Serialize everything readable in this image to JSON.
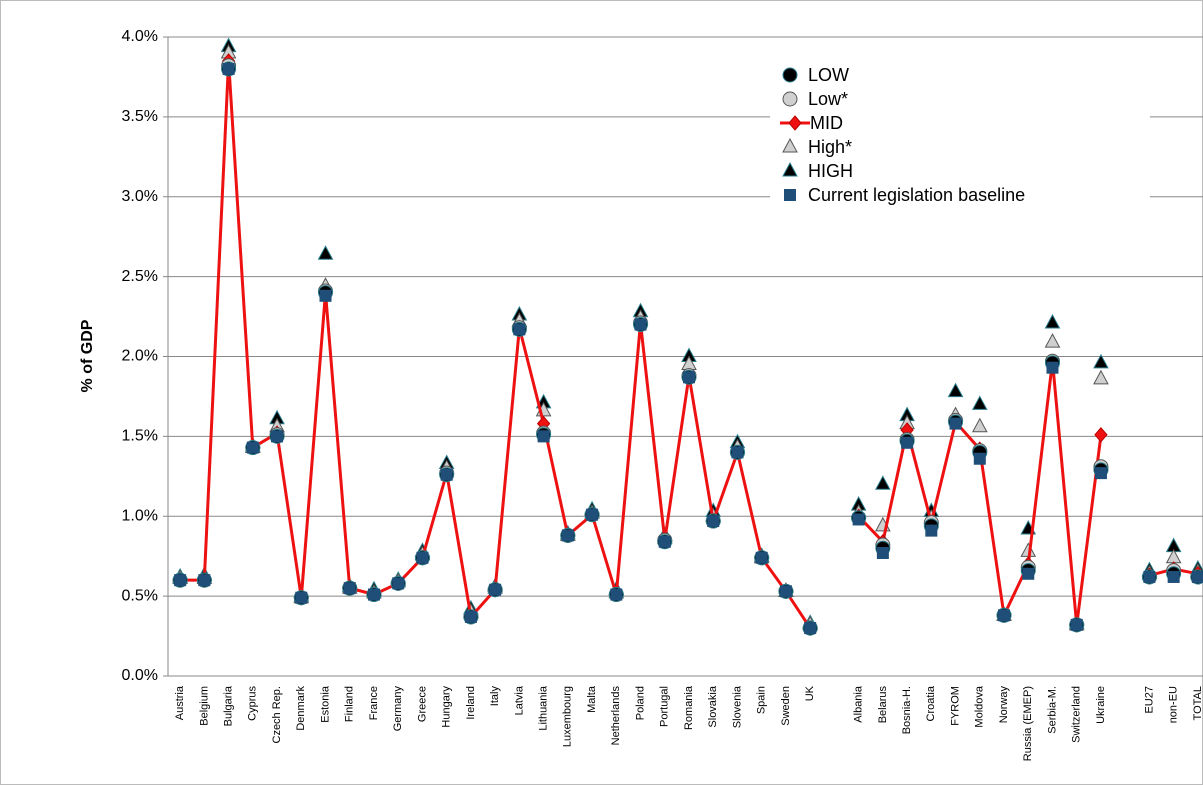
{
  "chart_data": {
    "type": "line",
    "y_label": "% of GDP",
    "categories": [
      "Austria",
      "Belgium",
      "Bulgaria",
      "Cyprus",
      "Czech Rep.",
      "Denmark",
      "Estonia",
      "Finland",
      "France",
      "Germany",
      "Greece",
      "Hungary",
      "Ireland",
      "Italy",
      "Latvia",
      "Lithuania",
      "Luxembourg",
      "Malta",
      "Netherlands",
      "Poland",
      "Portugal",
      "Romania",
      "Slovakia",
      "Slovenia",
      "Spain",
      "Sweden",
      "UK",
      null,
      "Albania",
      "Belarus",
      "Bosnia-H.",
      "Croatia",
      "FYROM",
      "Moldova",
      "Norway",
      "Russia (EMEP)",
      "Serbia-M.",
      "Switzerland",
      "Ukraine",
      null,
      "EU27",
      "non-EU",
      "TOTAL"
    ],
    "ylim": [
      0,
      4
    ],
    "yticks": [
      {
        "value": 0,
        "label": "0.0%"
      },
      {
        "value": 0.5,
        "label": "0.5%"
      },
      {
        "value": 1,
        "label": "1.0%"
      },
      {
        "value": 1.5,
        "label": "1.5%"
      },
      {
        "value": 2,
        "label": "2.0%"
      },
      {
        "value": 2.5,
        "label": "2.5%"
      },
      {
        "value": 3,
        "label": "3.0%"
      },
      {
        "value": 3.5,
        "label": "3.5%"
      },
      {
        "value": 4,
        "label": "4.0%"
      }
    ],
    "grid": true,
    "legend": "upper right",
    "series": [
      {
        "name": "LOW",
        "color": "#000000",
        "marker": "circle",
        "values": [
          0.6,
          0.6,
          3.8,
          1.43,
          1.5,
          0.49,
          2.4,
          0.55,
          0.51,
          0.58,
          0.74,
          1.26,
          0.37,
          0.54,
          2.17,
          1.51,
          0.88,
          1.01,
          0.51,
          2.2,
          0.84,
          1.87,
          0.97,
          1.4,
          0.74,
          0.53,
          0.3,
          null,
          0.99,
          0.8,
          1.47,
          0.94,
          1.59,
          1.4,
          0.38,
          0.66,
          1.96,
          0.32,
          1.29,
          null,
          0.62,
          0.64,
          0.62
        ]
      },
      {
        "name": "Low*",
        "color": "#d0d0d0",
        "marker": "circle",
        "values": [
          0.6,
          0.6,
          3.82,
          1.43,
          1.51,
          0.49,
          2.41,
          0.55,
          0.51,
          0.58,
          0.74,
          1.27,
          0.37,
          0.54,
          2.18,
          1.52,
          0.88,
          1.01,
          0.51,
          2.21,
          0.85,
          1.88,
          0.97,
          1.4,
          0.74,
          0.53,
          0.3,
          null,
          0.99,
          0.82,
          1.48,
          0.96,
          1.6,
          1.41,
          0.38,
          0.68,
          1.97,
          0.32,
          1.31,
          null,
          0.62,
          0.66,
          0.62
        ]
      },
      {
        "name": "MID",
        "color": "#ee1111",
        "marker": "diamond",
        "line": true,
        "values": [
          0.6,
          0.6,
          3.85,
          1.43,
          1.52,
          0.49,
          2.4,
          0.55,
          0.51,
          0.58,
          0.74,
          1.27,
          0.37,
          0.54,
          2.18,
          1.58,
          0.88,
          1.01,
          0.51,
          2.21,
          0.85,
          1.88,
          0.97,
          1.4,
          0.74,
          0.53,
          0.3,
          null,
          1.0,
          0.84,
          1.54,
          0.96,
          1.59,
          1.42,
          0.38,
          0.7,
          1.97,
          0.32,
          1.51,
          null,
          0.63,
          0.67,
          0.64
        ]
      },
      {
        "name": "High*",
        "color": "#d0d0d0",
        "marker": "triangle",
        "values": [
          0.61,
          0.61,
          3.9,
          1.43,
          1.56,
          0.49,
          2.44,
          0.55,
          0.52,
          0.59,
          0.76,
          1.3,
          0.4,
          0.55,
          2.22,
          1.66,
          0.88,
          1.02,
          0.52,
          2.24,
          0.86,
          1.95,
          1.0,
          1.43,
          0.74,
          0.53,
          0.32,
          null,
          1.02,
          0.94,
          1.58,
          0.99,
          1.63,
          1.56,
          0.38,
          0.78,
          2.09,
          0.32,
          1.86,
          null,
          0.64,
          0.74,
          0.65
        ]
      },
      {
        "name": "HIGH",
        "color": "#000000",
        "marker": "triangle",
        "values": [
          0.62,
          0.63,
          3.94,
          1.44,
          1.61,
          0.5,
          2.64,
          0.56,
          0.54,
          0.6,
          0.78,
          1.33,
          0.42,
          0.56,
          2.26,
          1.71,
          0.89,
          1.04,
          0.54,
          2.28,
          0.88,
          2.0,
          1.03,
          1.46,
          0.75,
          0.53,
          0.33,
          null,
          1.07,
          1.2,
          1.63,
          1.03,
          1.78,
          1.7,
          0.38,
          0.92,
          2.21,
          0.33,
          1.96,
          null,
          0.66,
          0.81,
          0.67
        ]
      },
      {
        "name": "Current legislation baseline",
        "color": "#1f4e79",
        "marker": "square",
        "values": [
          0.6,
          0.6,
          3.8,
          1.43,
          1.5,
          0.49,
          2.38,
          0.55,
          0.51,
          0.58,
          0.74,
          1.26,
          0.37,
          0.54,
          2.17,
          1.5,
          0.88,
          1.01,
          0.51,
          2.2,
          0.84,
          1.87,
          0.97,
          1.4,
          0.74,
          0.53,
          0.3,
          null,
          0.98,
          0.77,
          1.46,
          0.91,
          1.58,
          1.36,
          0.38,
          0.64,
          1.93,
          0.32,
          1.27,
          null,
          0.62,
          0.62,
          0.62
        ]
      }
    ]
  }
}
